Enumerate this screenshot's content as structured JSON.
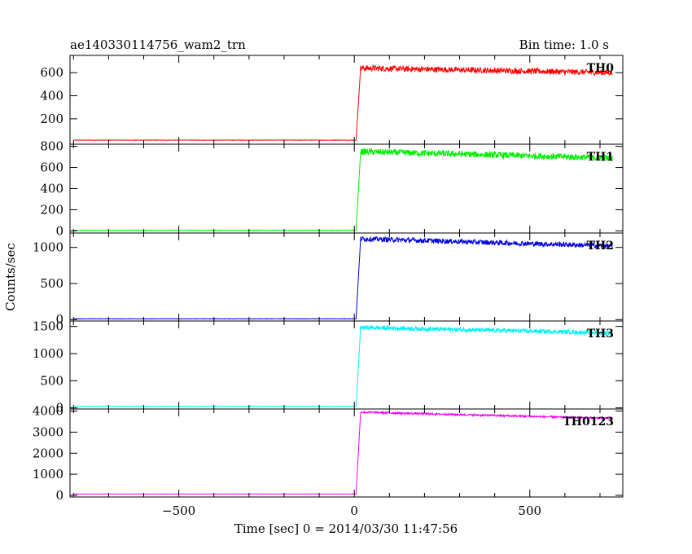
{
  "header": {
    "title": "ae140330114756_wam2_trn",
    "bin_time": "Bin time: 1.0 s"
  },
  "chart_data": {
    "type": "line",
    "title": "ae140330114756_wam2_trn",
    "xlabel": "Time [sec] 0 = 2014/03/30 11:47:56",
    "ylabel": "Counts/sec",
    "xlim": [
      -810,
      765
    ],
    "x_ticks": [
      -500,
      0,
      500
    ],
    "x_tick_labels": [
      "−500",
      "0",
      "500"
    ],
    "x_data_range": [
      -800,
      735
    ],
    "grid": false,
    "panels": [
      {
        "name": "TH0",
        "color": "#ff0000",
        "ylim": [
          -20,
          750
        ],
        "y_ticks": [
          200,
          400,
          600
        ],
        "y_tick_labels": [
          "200",
          "400",
          "600"
        ],
        "pre_level": 15,
        "rise_start": 5,
        "rise_end": 18,
        "post_start": 640,
        "post_end": 600,
        "noise": 25
      },
      {
        "name": "TH1",
        "color": "#00ee00",
        "ylim": [
          -20,
          820
        ],
        "y_ticks": [
          0,
          200,
          400,
          600,
          800
        ],
        "y_tick_labels": [
          "0",
          "200",
          "400",
          "600",
          "800"
        ],
        "pre_level": 5,
        "rise_start": 5,
        "rise_end": 18,
        "post_start": 750,
        "post_end": 690,
        "noise": 30
      },
      {
        "name": "TH2",
        "color": "#0000dd",
        "ylim": [
          -20,
          1200
        ],
        "y_ticks": [
          0,
          500,
          1000
        ],
        "y_tick_labels": [
          "0",
          "500",
          "1000"
        ],
        "pre_level": 10,
        "rise_start": 5,
        "rise_end": 18,
        "post_start": 1120,
        "post_end": 1020,
        "noise": 35
      },
      {
        "name": "TH3",
        "color": "#00f0f0",
        "ylim": [
          -20,
          1600
        ],
        "y_ticks": [
          0,
          500,
          1000,
          1500
        ],
        "y_tick_labels": [
          "0",
          "500",
          "1000",
          "1500"
        ],
        "pre_level": 30,
        "rise_start": 5,
        "rise_end": 18,
        "post_start": 1480,
        "post_end": 1380,
        "noise": 40
      },
      {
        "name": "TH0123",
        "color": "#ee00ee",
        "ylim": [
          -80,
          4100
        ],
        "y_ticks": [
          0,
          1000,
          2000,
          3000,
          4000
        ],
        "y_tick_labels": [
          "0",
          "1000",
          "2000",
          "3000",
          "4000"
        ],
        "pre_level": 60,
        "rise_start": 5,
        "rise_end": 18,
        "post_start": 3950,
        "post_end": 3650,
        "noise": 45
      }
    ]
  }
}
